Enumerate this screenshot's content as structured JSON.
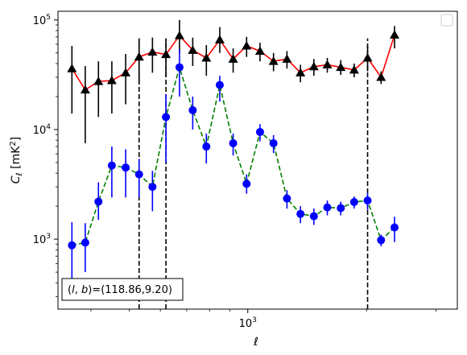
{
  "chart_data": {
    "type": "line",
    "title": "",
    "xlabel": "ℓ",
    "ylabel": "C_ℓ  [mK²]",
    "xscale": "log",
    "yscale": "log",
    "xlim": [
      330,
      3400
    ],
    "ylim": [
      230,
      120000
    ],
    "grid": false,
    "legend": "top-right (empty)",
    "x_ticks": [
      {
        "value": 1000,
        "label": "10",
        "sup": "3"
      }
    ],
    "y_ticks": [
      {
        "value": 1000,
        "label": "10",
        "sup": "3"
      },
      {
        "value": 10000,
        "label": "10",
        "sup": "4"
      },
      {
        "value": 100000,
        "label": "10",
        "sup": "5"
      }
    ],
    "series": [
      {
        "line_color": "#ff0000",
        "line_style": "solid",
        "marker": "triangle",
        "marker_color": "#000000",
        "errorbar_color": "#000000",
        "points": [
          {
            "x": 358,
            "y": 36000,
            "lo": 14000,
            "hi": 58000
          },
          {
            "x": 387,
            "y": 23000,
            "lo": 7500,
            "hi": 38000
          },
          {
            "x": 418,
            "y": 27500,
            "lo": 13000,
            "hi": 42000
          },
          {
            "x": 452,
            "y": 28000,
            "lo": 14000,
            "hi": 42000
          },
          {
            "x": 490,
            "y": 33000,
            "lo": 17000,
            "hi": 49000
          },
          {
            "x": 530,
            "y": 46000,
            "lo": 26000,
            "hi": 66000
          },
          {
            "x": 573,
            "y": 51000,
            "lo": 33000,
            "hi": 69000
          },
          {
            "x": 620,
            "y": 48500,
            "lo": 30000,
            "hi": 67000
          },
          {
            "x": 671,
            "y": 72000,
            "lo": 50000,
            "hi": 100000
          },
          {
            "x": 725,
            "y": 53000,
            "lo": 38000,
            "hi": 69000
          },
          {
            "x": 785,
            "y": 45000,
            "lo": 31000,
            "hi": 59000
          },
          {
            "x": 849,
            "y": 66000,
            "lo": 50000,
            "hi": 86000
          },
          {
            "x": 918,
            "y": 44000,
            "lo": 33000,
            "hi": 55000
          },
          {
            "x": 993,
            "y": 58000,
            "lo": 46000,
            "hi": 70000
          },
          {
            "x": 1074,
            "y": 52000,
            "lo": 42000,
            "hi": 62000
          },
          {
            "x": 1162,
            "y": 42000,
            "lo": 34000,
            "hi": 50000
          },
          {
            "x": 1257,
            "y": 44000,
            "lo": 36000,
            "hi": 52000
          },
          {
            "x": 1360,
            "y": 33000,
            "lo": 27000,
            "hi": 39000
          },
          {
            "x": 1471,
            "y": 37500,
            "lo": 31000,
            "hi": 44000
          },
          {
            "x": 1591,
            "y": 39000,
            "lo": 33000,
            "hi": 45000
          },
          {
            "x": 1721,
            "y": 37000,
            "lo": 31500,
            "hi": 43000
          },
          {
            "x": 1861,
            "y": 35000,
            "lo": 30000,
            "hi": 40000
          },
          {
            "x": 2013,
            "y": 45000,
            "lo": 34000,
            "hi": 58000
          },
          {
            "x": 2178,
            "y": 30000,
            "lo": 26000,
            "hi": 34000
          },
          {
            "x": 2356,
            "y": 73000,
            "lo": 55000,
            "hi": 88000
          }
        ]
      },
      {
        "line_color": "#008000",
        "line_style": "dashed",
        "marker": "circle",
        "marker_color": "#0000ff",
        "errorbar_color": "#0000ff",
        "points": [
          {
            "x": 358,
            "y": 880,
            "lo": 400,
            "hi": 1430
          },
          {
            "x": 387,
            "y": 930,
            "lo": 500,
            "hi": 1400
          },
          {
            "x": 418,
            "y": 2200,
            "lo": 1500,
            "hi": 3300
          },
          {
            "x": 452,
            "y": 4700,
            "lo": 2400,
            "hi": 7000
          },
          {
            "x": 490,
            "y": 4500,
            "lo": 2400,
            "hi": 6600
          },
          {
            "x": 530,
            "y": 3900,
            "lo": 2400,
            "hi": 5400
          },
          {
            "x": 573,
            "y": 3000,
            "lo": 1800,
            "hi": 4200
          },
          {
            "x": 620,
            "y": 13000,
            "lo": 5000,
            "hi": 21000
          },
          {
            "x": 671,
            "y": 37000,
            "lo": 20000,
            "hi": 54000
          },
          {
            "x": 725,
            "y": 15000,
            "lo": 10000,
            "hi": 20000
          },
          {
            "x": 785,
            "y": 7000,
            "lo": 4900,
            "hi": 9200
          },
          {
            "x": 849,
            "y": 25500,
            "lo": 18000,
            "hi": 31000
          },
          {
            "x": 918,
            "y": 7500,
            "lo": 5800,
            "hi": 9200
          },
          {
            "x": 993,
            "y": 3200,
            "lo": 2600,
            "hi": 3900
          },
          {
            "x": 1074,
            "y": 9500,
            "lo": 7800,
            "hi": 11200
          },
          {
            "x": 1162,
            "y": 7500,
            "lo": 6100,
            "hi": 8900
          },
          {
            "x": 1257,
            "y": 2350,
            "lo": 1900,
            "hi": 2800
          },
          {
            "x": 1360,
            "y": 1700,
            "lo": 1400,
            "hi": 2000
          },
          {
            "x": 1471,
            "y": 1620,
            "lo": 1350,
            "hi": 1900
          },
          {
            "x": 1591,
            "y": 1950,
            "lo": 1650,
            "hi": 2250
          },
          {
            "x": 1721,
            "y": 1920,
            "lo": 1650,
            "hi": 2200
          },
          {
            "x": 1861,
            "y": 2180,
            "lo": 1900,
            "hi": 2450
          },
          {
            "x": 2013,
            "y": 2250,
            "lo": 1850,
            "hi": 2650
          },
          {
            "x": 2178,
            "y": 980,
            "lo": 860,
            "hi": 1100
          },
          {
            "x": 2356,
            "y": 1280,
            "lo": 940,
            "hi": 1600
          }
        ]
      }
    ],
    "vlines": [
      {
        "x": 530,
        "color": "#000000",
        "style": "dashed",
        "ymin": 230,
        "ymax": 68000
      },
      {
        "x": 620,
        "color": "#000000",
        "style": "dashed",
        "ymin": 230,
        "ymax": 68000
      },
      {
        "x": 2013,
        "color": "#000000",
        "style": "dashed",
        "ymin": 230,
        "ymax": 68000
      }
    ],
    "annotation": {
      "text": "(l, b)=(118.86,9.20)",
      "position": "bottom-left"
    }
  }
}
